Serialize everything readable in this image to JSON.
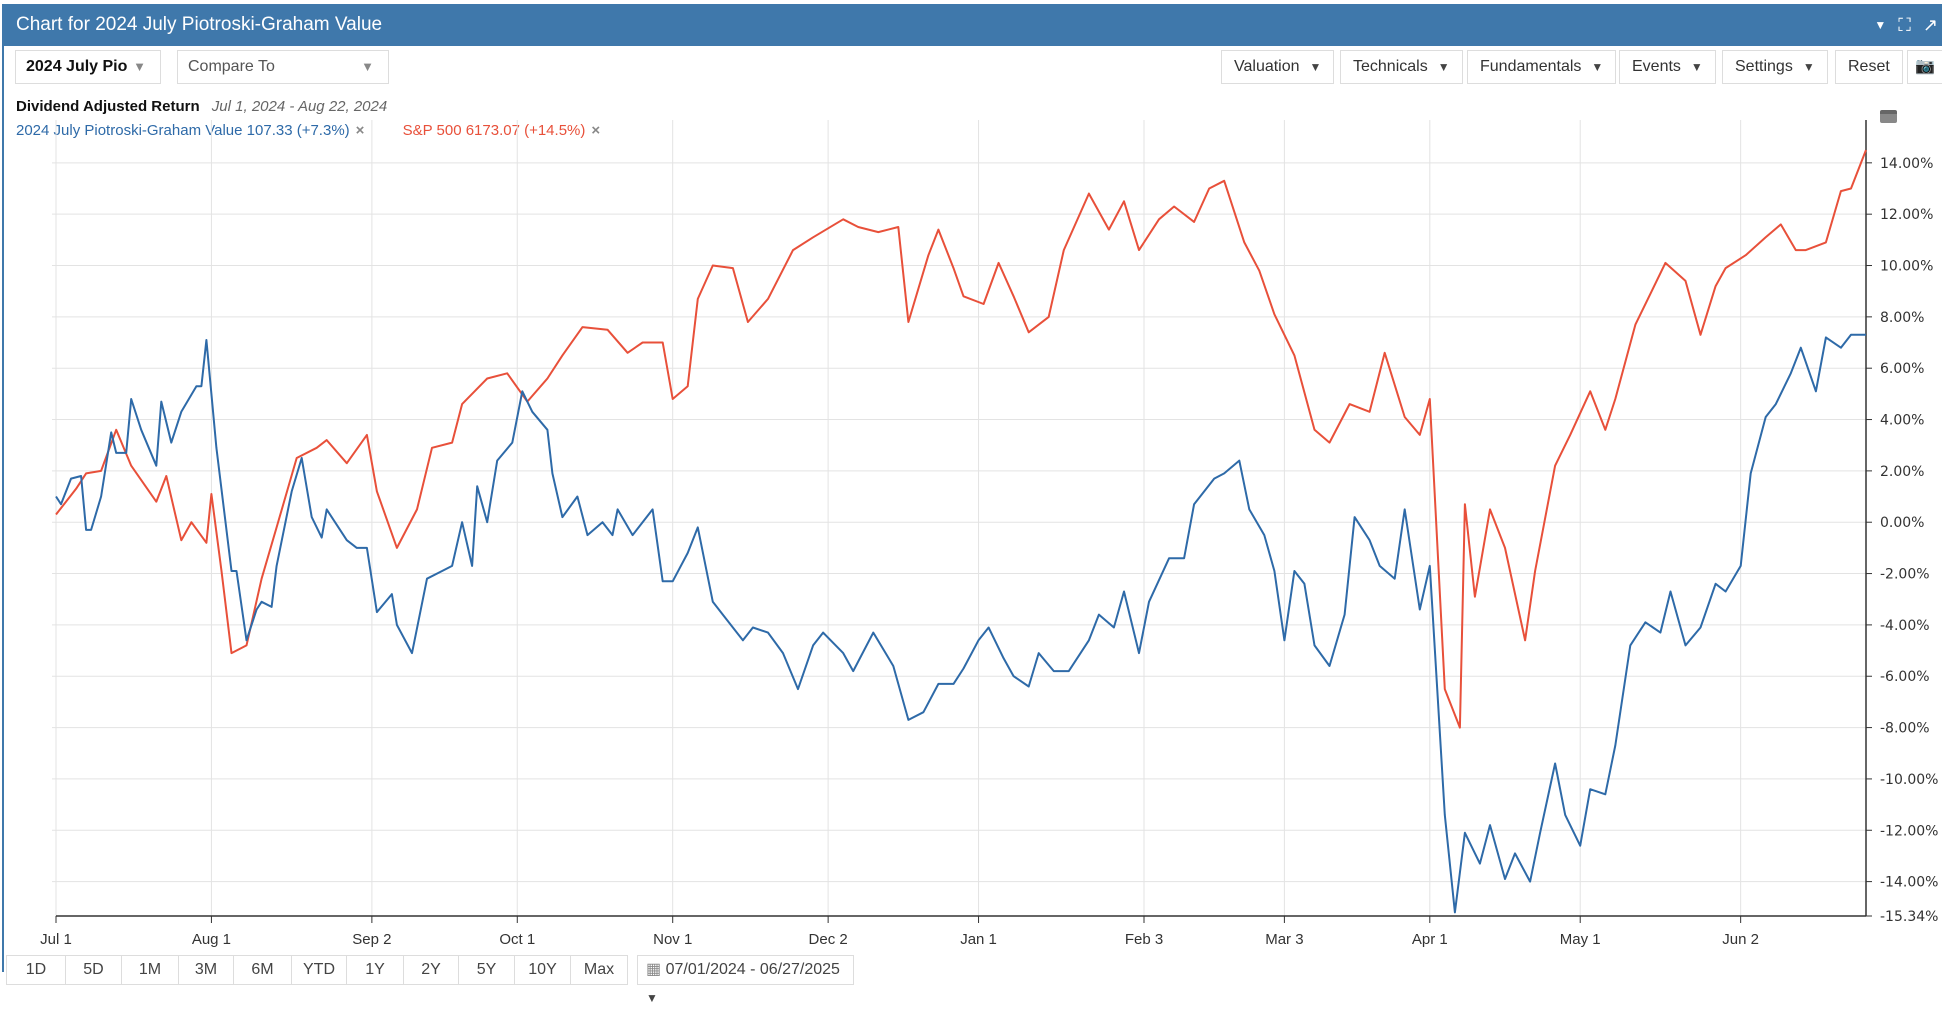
{
  "header": {
    "title": "Chart for 2024 July Piotroski-Graham Value",
    "icons": [
      "caret-down-icon",
      "fullscreen-icon",
      "popout-icon"
    ]
  },
  "toolbar": {
    "symbol_select": "2024 July Pio",
    "compare_placeholder": "Compare To",
    "valuation": "Valuation",
    "technicals": "Technicals",
    "fundamentals": "Fundamentals",
    "events": "Events",
    "settings": "Settings",
    "reset": "Reset"
  },
  "legend": {
    "title": "Dividend Adjusted Return",
    "date_range": "Jul 1, 2024 - Aug 22, 2024",
    "series1": "2024 July Piotroski-Graham Value 107.33 (+7.3%)",
    "series2": "S&P 500 6173.07 (+14.5%)",
    "remove": "×"
  },
  "range_buttons": [
    "1D",
    "5D",
    "1M",
    "3M",
    "6M",
    "YTD",
    "1Y",
    "2Y",
    "5Y",
    "10Y",
    "Max"
  ],
  "date_picker": "07/01/2024 - 06/27/2025",
  "chart_data": {
    "type": "line",
    "title": "Dividend Adjusted Return",
    "xlabel": "",
    "ylabel": "",
    "x_unit": "calendar days since Jul 1, 2024",
    "x_ticks": [
      {
        "label": "Jul 1",
        "day": 0
      },
      {
        "label": "Aug 1",
        "day": 31
      },
      {
        "label": "Sep 2",
        "day": 63
      },
      {
        "label": "Oct 1",
        "day": 92
      },
      {
        "label": "Nov 1",
        "day": 123
      },
      {
        "label": "Dec 2",
        "day": 154
      },
      {
        "label": "Jan 1",
        "day": 184
      },
      {
        "label": "Feb 3",
        "day": 217
      },
      {
        "label": "Mar 3",
        "day": 245
      },
      {
        "label": "Apr 1",
        "day": 274
      },
      {
        "label": "May 1",
        "day": 304
      },
      {
        "label": "Jun 2",
        "day": 336
      }
    ],
    "xlim": [
      0,
      361
    ],
    "ylim": [
      -15.34,
      14.5
    ],
    "y_ticks": [
      "14.00%",
      "12.00%",
      "10.00%",
      "8.00%",
      "6.00%",
      "4.00%",
      "2.00%",
      "0.00%",
      "-2.00%",
      "-4.00%",
      "-6.00%",
      "-8.00%",
      "-10.00%",
      "-12.00%",
      "-14.00%",
      "-15.34%"
    ],
    "y_tick_values": [
      14,
      12,
      10,
      8,
      6,
      4,
      2,
      0,
      -2,
      -4,
      -6,
      -8,
      -10,
      -12,
      -14,
      -15.34
    ],
    "grid": true,
    "series": [
      {
        "name": "2024 July Piotroski-Graham Value",
        "color": "#2e6aa8",
        "x": [
          0,
          1,
          3,
          5,
          6,
          7,
          9,
          11,
          12,
          14,
          15,
          17,
          20,
          21,
          23,
          25,
          28,
          29,
          30,
          32,
          35,
          36,
          38,
          40,
          41,
          43,
          44,
          47,
          49,
          51,
          53,
          54,
          58,
          60,
          62,
          64,
          67,
          68,
          71,
          74,
          77,
          79,
          81,
          83,
          84,
          86,
          88,
          91,
          93,
          95,
          98,
          99,
          101,
          104,
          106,
          109,
          111,
          112,
          115,
          117,
          119,
          121,
          123,
          126,
          128,
          131,
          133,
          137,
          139,
          142,
          145,
          148,
          151,
          153,
          157,
          159,
          163,
          167,
          170,
          173,
          176,
          179,
          181,
          184,
          186,
          189,
          191,
          194,
          196,
          199,
          202,
          206,
          208,
          211,
          213,
          216,
          218,
          222,
          225,
          227,
          231,
          233,
          236,
          238,
          241,
          243,
          245,
          247,
          249,
          251,
          254,
          257,
          259,
          262,
          264,
          267,
          269,
          272,
          274,
          277,
          279,
          281,
          284,
          286,
          289,
          291,
          294,
          296,
          299,
          301,
          304,
          306,
          309,
          311,
          314,
          317,
          320,
          322,
          325,
          328,
          331,
          333,
          336,
          338,
          341,
          343,
          346,
          348,
          351,
          353,
          356,
          358,
          361
        ],
        "values": [
          1.0,
          0.7,
          1.7,
          1.8,
          -0.3,
          -0.3,
          1.0,
          3.5,
          2.7,
          2.7,
          4.8,
          3.6,
          2.2,
          4.7,
          3.1,
          4.3,
          5.3,
          5.3,
          7.1,
          2.9,
          -1.9,
          -1.9,
          -4.6,
          -3.4,
          -3.1,
          -3.3,
          -1.7,
          1.2,
          2.5,
          0.2,
          -0.6,
          0.5,
          -0.7,
          -1.0,
          -1.0,
          -3.5,
          -2.8,
          -4.0,
          -5.1,
          -2.2,
          -1.9,
          -1.7,
          0,
          -1.7,
          1.4,
          0,
          2.4,
          3.1,
          5.1,
          4.3,
          3.6,
          1.9,
          0.2,
          1.0,
          -0.5,
          0,
          -0.5,
          0.5,
          -0.5,
          0,
          0.5,
          -2.3,
          -2.3,
          -1.2,
          -0.2,
          -3.1,
          -3.6,
          -4.6,
          -4.1,
          -4.3,
          -5.1,
          -6.5,
          -4.8,
          -4.3,
          -5.1,
          -5.8,
          -4.3,
          -5.6,
          -7.7,
          -7.4,
          -6.3,
          -6.3,
          -5.7,
          -4.6,
          -4.1,
          -5.3,
          -6.0,
          -6.4,
          -5.1,
          -5.8,
          -5.8,
          -4.6,
          -3.6,
          -4.1,
          -2.7,
          -5.1,
          -3.1,
          -1.4,
          -1.4,
          0.7,
          1.7,
          1.9,
          2.4,
          0.5,
          -0.5,
          -1.9,
          -4.6,
          -1.9,
          -2.4,
          -4.8,
          -5.6,
          -3.6,
          0.2,
          -0.7,
          -1.7,
          -2.2,
          0.5,
          -3.4,
          -1.7,
          -11.4,
          -15.2,
          -12.1,
          -13.3,
          -11.8,
          -13.9,
          -12.9,
          -14.0,
          -12.1,
          -9.4,
          -11.4,
          -12.6,
          -10.4,
          -10.6,
          -8.7,
          -4.8,
          -3.9,
          -4.3,
          -2.7,
          -4.8,
          -4.1,
          -2.4,
          -2.7,
          -1.7,
          1.9,
          4.1,
          4.6,
          5.8,
          6.8,
          5.1,
          7.2,
          6.8,
          7.3,
          7.3
        ]
      },
      {
        "name": "S&P 500",
        "color": "#e8503a",
        "x": [
          0,
          4,
          6,
          9,
          12,
          15,
          20,
          22,
          25,
          27,
          30,
          31,
          33,
          35,
          38,
          41,
          44,
          48,
          52,
          54,
          58,
          62,
          64,
          68,
          72,
          75,
          79,
          81,
          86,
          90,
          94,
          98,
          101,
          105,
          110,
          114,
          117,
          121,
          123,
          126,
          128,
          131,
          135,
          138,
          142,
          147,
          151,
          157,
          160,
          164,
          168,
          170,
          174,
          176,
          179,
          181,
          185,
          188,
          191,
          194,
          198,
          201,
          206,
          210,
          213,
          216,
          220,
          223,
          227,
          230,
          233,
          237,
          240,
          243,
          247,
          251,
          254,
          258,
          262,
          265,
          269,
          272,
          274,
          277,
          280,
          281,
          283,
          286,
          289,
          293,
          295,
          299,
          302,
          306,
          309,
          311,
          315,
          318,
          321,
          325,
          328,
          331,
          333,
          337,
          341,
          344,
          347,
          349,
          353,
          356,
          358,
          361
        ],
        "values": [
          0.3,
          1.3,
          1.9,
          2.0,
          3.6,
          2.2,
          0.8,
          1.8,
          -0.7,
          0,
          -0.8,
          1.1,
          -1.9,
          -5.1,
          -4.8,
          -2.2,
          -0.2,
          2.5,
          2.9,
          3.2,
          2.3,
          3.4,
          1.2,
          -1.0,
          0.5,
          2.9,
          3.1,
          4.6,
          5.6,
          5.8,
          4.7,
          5.6,
          6.5,
          7.6,
          7.5,
          6.6,
          7.0,
          7.0,
          4.8,
          5.3,
          8.7,
          10.0,
          9.9,
          7.8,
          8.7,
          10.6,
          11.1,
          11.8,
          11.5,
          11.3,
          11.5,
          7.8,
          10.4,
          11.4,
          9.9,
          8.8,
          8.5,
          10.1,
          8.8,
          7.4,
          8.0,
          10.6,
          12.8,
          11.4,
          12.5,
          10.6,
          11.8,
          12.3,
          11.7,
          13.0,
          13.3,
          10.9,
          9.8,
          8.1,
          6.5,
          3.6,
          3.1,
          4.6,
          4.3,
          6.6,
          4.1,
          3.4,
          4.8,
          -6.5,
          -8.0,
          0.7,
          -2.9,
          0.5,
          -1.0,
          -4.6,
          -1.9,
          2.2,
          3.4,
          5.1,
          3.6,
          4.8,
          7.7,
          8.9,
          10.1,
          9.4,
          7.3,
          9.2,
          9.9,
          10.4,
          11.1,
          11.6,
          10.6,
          10.6,
          10.9,
          12.9,
          13.0,
          14.5
        ]
      }
    ]
  }
}
